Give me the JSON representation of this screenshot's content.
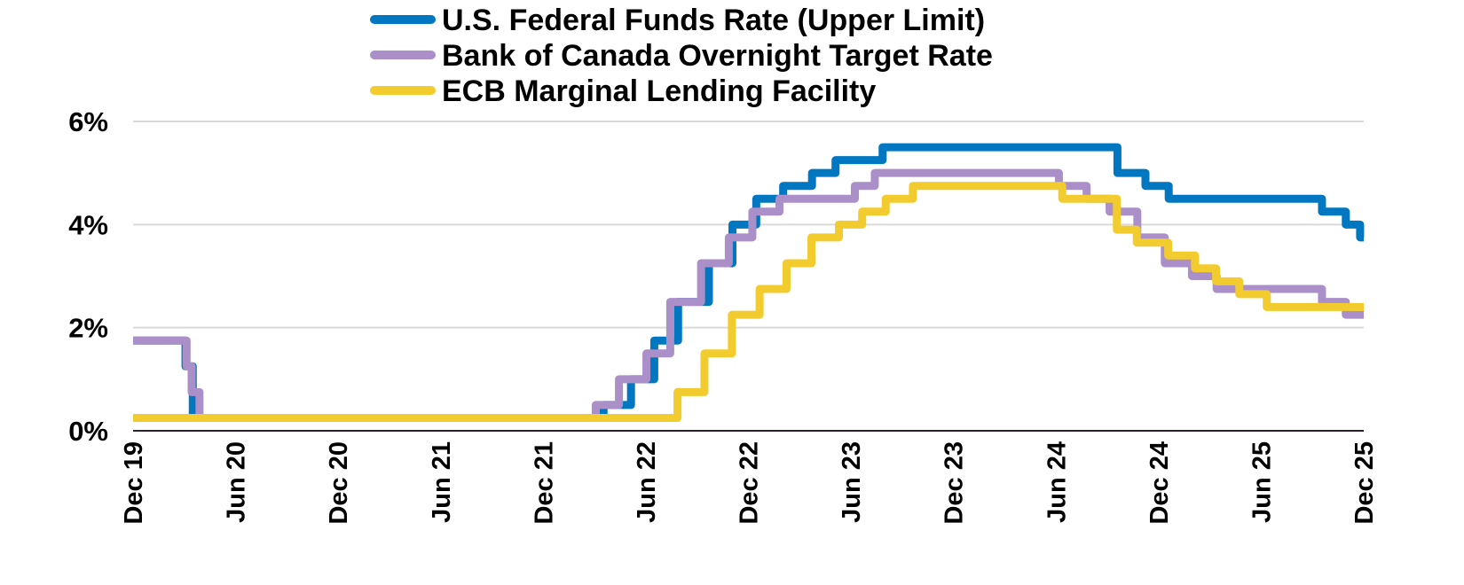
{
  "chart_data": {
    "type": "line",
    "step": true,
    "title": "",
    "xlabel": "",
    "ylabel": "",
    "ylim": [
      0,
      6
    ],
    "yticks": [
      "0%",
      "2%",
      "4%",
      "6%"
    ],
    "ytick_values": [
      0,
      2,
      4,
      6
    ],
    "xlim": [
      "2019-12-01",
      "2025-12-01"
    ],
    "xticks": [
      "Dec 19",
      "Jun 20",
      "Dec 20",
      "Jun 21",
      "Dec 21",
      "Jun 22",
      "Dec 22",
      "Jun 23",
      "Dec 23",
      "Jun 24",
      "Dec 24",
      "Jun 25",
      "Dec 25"
    ],
    "grid": true,
    "legend_position": "top",
    "series": [
      {
        "name": "U.S. Federal Funds Rate (Upper Limit)",
        "color": "#0077c0",
        "points": [
          [
            "2019-12-01",
            1.75
          ],
          [
            "2020-03-03",
            1.25
          ],
          [
            "2020-03-16",
            0.25
          ],
          [
            "2022-03-17",
            0.5
          ],
          [
            "2022-05-05",
            1.0
          ],
          [
            "2022-06-16",
            1.75
          ],
          [
            "2022-07-28",
            2.5
          ],
          [
            "2022-09-22",
            3.25
          ],
          [
            "2022-11-03",
            4.0
          ],
          [
            "2022-12-15",
            4.5
          ],
          [
            "2023-02-02",
            4.75
          ],
          [
            "2023-03-23",
            5.0
          ],
          [
            "2023-05-04",
            5.25
          ],
          [
            "2023-07-27",
            5.5
          ],
          [
            "2024-09-19",
            5.0
          ],
          [
            "2024-11-08",
            4.75
          ],
          [
            "2024-12-19",
            4.5
          ],
          [
            "2025-09-18",
            4.25
          ],
          [
            "2025-10-30",
            4.0
          ],
          [
            "2025-11-25",
            3.75
          ],
          [
            "2025-12-01",
            3.75
          ]
        ]
      },
      {
        "name": "Bank of Canada Overnight Target Rate",
        "color": "#ab8fc9",
        "points": [
          [
            "2019-12-01",
            1.75
          ],
          [
            "2020-03-05",
            1.25
          ],
          [
            "2020-03-14",
            0.75
          ],
          [
            "2020-03-28",
            0.25
          ],
          [
            "2022-03-03",
            0.5
          ],
          [
            "2022-04-14",
            1.0
          ],
          [
            "2022-06-02",
            1.5
          ],
          [
            "2022-07-14",
            2.5
          ],
          [
            "2022-09-08",
            3.25
          ],
          [
            "2022-10-27",
            3.75
          ],
          [
            "2022-12-08",
            4.25
          ],
          [
            "2023-01-26",
            4.5
          ],
          [
            "2023-06-08",
            4.75
          ],
          [
            "2023-07-13",
            5.0
          ],
          [
            "2024-06-06",
            4.75
          ],
          [
            "2024-07-25",
            4.5
          ],
          [
            "2024-09-05",
            4.25
          ],
          [
            "2024-10-24",
            3.75
          ],
          [
            "2024-12-12",
            3.25
          ],
          [
            "2025-01-30",
            3.0
          ],
          [
            "2025-03-13",
            2.75
          ],
          [
            "2025-09-18",
            2.5
          ],
          [
            "2025-10-30",
            2.25
          ],
          [
            "2025-12-01",
            2.25
          ]
        ]
      },
      {
        "name": "ECB Marginal Lending Facility",
        "color": "#f2cc2e",
        "points": [
          [
            "2019-12-01",
            0.25
          ],
          [
            "2022-07-27",
            0.75
          ],
          [
            "2022-09-14",
            1.5
          ],
          [
            "2022-11-02",
            2.25
          ],
          [
            "2022-12-21",
            2.75
          ],
          [
            "2023-02-08",
            3.25
          ],
          [
            "2023-03-22",
            3.75
          ],
          [
            "2023-05-10",
            4.0
          ],
          [
            "2023-06-21",
            4.25
          ],
          [
            "2023-08-02",
            4.5
          ],
          [
            "2023-09-20",
            4.75
          ],
          [
            "2024-06-12",
            4.5
          ],
          [
            "2024-09-18",
            3.9
          ],
          [
            "2024-10-23",
            3.65
          ],
          [
            "2024-12-18",
            3.4
          ],
          [
            "2025-02-05",
            3.15
          ],
          [
            "2025-03-12",
            2.9
          ],
          [
            "2025-04-23",
            2.65
          ],
          [
            "2025-06-11",
            2.4
          ],
          [
            "2025-12-01",
            2.4
          ]
        ]
      }
    ]
  }
}
